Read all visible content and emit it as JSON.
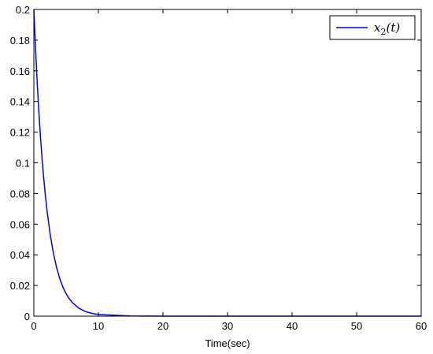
{
  "chart_data": {
    "type": "line",
    "title": "",
    "xlabel": "Time(sec)",
    "ylabel": "",
    "xlim": [
      0,
      60
    ],
    "ylim": [
      0,
      0.2
    ],
    "xticks": [
      0,
      10,
      20,
      30,
      40,
      50,
      60
    ],
    "xtick_labels": [
      "0",
      "10",
      "20",
      "30",
      "40",
      "50",
      "60"
    ],
    "yticks": [
      0,
      0.02,
      0.04,
      0.06,
      0.08,
      0.1,
      0.12,
      0.14,
      0.16,
      0.18,
      0.2
    ],
    "ytick_labels": [
      "0",
      "0.02",
      "0.04",
      "0.06",
      "0.08",
      "0.1",
      "0.12",
      "0.14",
      "0.16",
      "0.18",
      "0.2"
    ],
    "grid": false,
    "legend": {
      "position": "top-right",
      "entries": [
        "x_2(t)"
      ]
    },
    "series": [
      {
        "name": "x_2(t)",
        "color": "#0000ff",
        "x": [
          0,
          0.25,
          0.5,
          0.75,
          1,
          1.25,
          1.5,
          1.75,
          2,
          2.5,
          3,
          3.5,
          4,
          4.5,
          5,
          5.5,
          6,
          7,
          8,
          9,
          10,
          15,
          20,
          30,
          40,
          50,
          60
        ],
        "y": [
          0.2,
          0.1755,
          0.154,
          0.1351,
          0.1185,
          0.104,
          0.0913,
          0.0801,
          0.0703,
          0.0541,
          0.0417,
          0.0321,
          0.0247,
          0.019,
          0.0146,
          0.0113,
          0.0087,
          0.0051,
          0.003,
          0.0018,
          0.0011,
          0.0001,
          0,
          0,
          0,
          0,
          0
        ]
      }
    ]
  }
}
